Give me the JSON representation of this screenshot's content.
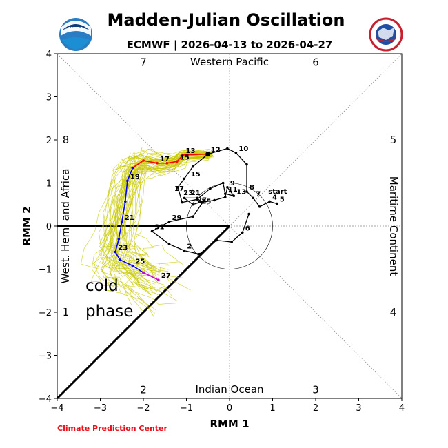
{
  "chart_data": {
    "type": "line",
    "title": "Madden-Julian Oscillation",
    "subtitle": "ECMWF | 2026-04-13 to 2026-04-27",
    "xlabel": "RMM 1",
    "ylabel": "RMM 2",
    "xlim": [
      -4,
      4
    ],
    "ylim": [
      -4,
      4
    ],
    "xticks": [
      "−4",
      "−3",
      "−2",
      "−1",
      "0",
      "1",
      "2",
      "3",
      "4"
    ],
    "yticks": [
      "−4",
      "−3",
      "−2",
      "−1",
      "0",
      "1",
      "2",
      "3",
      "4"
    ],
    "xtick_values": [
      -4,
      -3,
      -2,
      -1,
      0,
      1,
      2,
      3,
      4
    ],
    "ytick_values": [
      -4,
      -3,
      -2,
      -1,
      0,
      1,
      2,
      3,
      4
    ],
    "regions": {
      "top": "Western Pacific",
      "bottom": "Indian Ocean",
      "left": "West. Hem. and Africa",
      "right": "Maritime Continent"
    },
    "phases": [
      {
        "label": "1",
        "x": -3.8,
        "y": -2.0
      },
      {
        "label": "2",
        "x": -2.0,
        "y": -3.8
      },
      {
        "label": "3",
        "x": 2.0,
        "y": -3.8
      },
      {
        "label": "4",
        "x": 3.8,
        "y": -2.0
      },
      {
        "label": "5",
        "x": 3.8,
        "y": 2.0
      },
      {
        "label": "6",
        "x": 2.0,
        "y": 3.8
      },
      {
        "label": "7",
        "x": -2.0,
        "y": 3.8
      },
      {
        "label": "8",
        "x": -3.8,
        "y": 2.0
      }
    ],
    "annotation": {
      "line1": "cold",
      "line2": "phase"
    },
    "credit": "Climate Prediction Center",
    "observed": {
      "name": "Observed",
      "color": "#000000",
      "start_label": "start",
      "points": [
        {
          "x": 1.1,
          "y": 0.52,
          "label": "5"
        },
        {
          "x": 0.93,
          "y": 0.57,
          "label": "4"
        },
        {
          "x": 0.7,
          "y": 0.45,
          "label": ""
        },
        {
          "x": 0.55,
          "y": 0.65,
          "label": "7"
        },
        {
          "x": 0.4,
          "y": 0.8,
          "label": "8"
        },
        {
          "x": 0.4,
          "y": 1.43,
          "label": ""
        },
        {
          "x": 0.15,
          "y": 1.7,
          "label": "10"
        },
        {
          "x": -0.05,
          "y": 1.8,
          "label": ""
        },
        {
          "x": -0.5,
          "y": 1.67,
          "label": ""
        },
        {
          "x": -0.85,
          "y": 1.38,
          "label": ""
        },
        {
          "x": -1.05,
          "y": 1.1,
          "label": ""
        },
        {
          "x": -1.2,
          "y": 0.9,
          "label": ""
        },
        {
          "x": -1.1,
          "y": 0.55,
          "label": ""
        },
        {
          "x": -0.75,
          "y": 0.62,
          "label": ""
        },
        {
          "x": -0.45,
          "y": 0.87,
          "label": ""
        },
        {
          "x": -0.15,
          "y": 1.0,
          "label": ""
        },
        {
          "x": -0.1,
          "y": 0.75,
          "label": "11"
        },
        {
          "x": 0.1,
          "y": 0.7,
          "label": "13"
        },
        {
          "x": -0.05,
          "y": 0.9,
          "label": "9"
        },
        {
          "x": -0.1,
          "y": 0.67,
          "label": ""
        },
        {
          "x": -0.35,
          "y": 0.6,
          "label": ""
        },
        {
          "x": -0.65,
          "y": 0.55,
          "label": ""
        },
        {
          "x": -0.75,
          "y": 0.65,
          "label": ""
        },
        {
          "x": -1.05,
          "y": 0.65,
          "label": ""
        },
        {
          "x": -0.85,
          "y": 0.5,
          "label": ""
        },
        {
          "x": -0.6,
          "y": 0.58,
          "label": ""
        },
        {
          "x": -0.85,
          "y": 0.22,
          "label": ""
        },
        {
          "x": -1.4,
          "y": 0.1,
          "label": "29"
        },
        {
          "x": -1.8,
          "y": -0.12,
          "label": "31"
        },
        {
          "x": -1.4,
          "y": -0.42,
          "label": ""
        },
        {
          "x": -1.05,
          "y": -0.57,
          "label": "2"
        },
        {
          "x": -0.7,
          "y": -0.65,
          "label": ""
        },
        {
          "x": -0.3,
          "y": -0.33,
          "label": ""
        },
        {
          "x": 0.05,
          "y": -0.37,
          "label": ""
        },
        {
          "x": 0.3,
          "y": -0.15,
          "label": "6"
        },
        {
          "x": 0.45,
          "y": 0.28,
          "label": ""
        }
      ],
      "extra_labels": [
        {
          "x": -1.28,
          "y": 0.82,
          "label": "17"
        },
        {
          "x": -1.07,
          "y": 0.72,
          "label": "23"
        },
        {
          "x": -0.9,
          "y": 0.72,
          "label": "21"
        },
        {
          "x": -0.75,
          "y": 0.55,
          "label": "27"
        },
        {
          "x": -0.65,
          "y": 0.52,
          "label": "25"
        },
        {
          "x": -0.9,
          "y": 1.15,
          "label": "15"
        }
      ]
    },
    "forecast": {
      "segments": [
        {
          "name": "obs-to-forecast",
          "color": "#000000",
          "points": [
            [
              -0.5,
              1.67
            ],
            [
              -0.5,
              1.67
            ]
          ]
        },
        {
          "name": "forecast-week1",
          "color": "#ff0000",
          "points": [
            [
              -0.5,
              1.67
            ],
            [
              -1.08,
              1.65
            ],
            [
              -1.22,
              1.5
            ],
            [
              -1.45,
              1.46
            ],
            [
              -1.68,
              1.46
            ],
            [
              -2.0,
              1.52
            ],
            [
              -2.25,
              1.35
            ]
          ],
          "labels": [
            {
              "i": 1,
              "t": "13"
            },
            {
              "i": 0,
              "t": "12"
            },
            {
              "i": 4,
              "t": "17"
            },
            {
              "i": 2,
              "t": "15"
            }
          ]
        },
        {
          "name": "forecast-week2",
          "color": "#0000ff",
          "points": [
            [
              -2.25,
              1.35
            ],
            [
              -2.37,
              1.05
            ],
            [
              -2.42,
              0.57
            ],
            [
              -2.5,
              0.1
            ],
            [
              -2.57,
              -0.3
            ],
            [
              -2.65,
              -0.6
            ],
            [
              -2.55,
              -0.78
            ],
            [
              -2.25,
              -0.92
            ],
            [
              -2.0,
              -1.08
            ]
          ],
          "labels": [
            {
              "i": 1,
              "t": "19"
            },
            {
              "i": 3,
              "t": "21"
            },
            {
              "i": 5,
              "t": "23"
            },
            {
              "i": 7,
              "t": "25"
            }
          ]
        },
        {
          "name": "forecast-tail",
          "color": "#cc00cc",
          "points": [
            [
              -2.0,
              -1.08
            ],
            [
              -1.65,
              -1.25
            ]
          ],
          "labels": [
            {
              "i": 1,
              "t": "27"
            }
          ]
        }
      ]
    }
  }
}
